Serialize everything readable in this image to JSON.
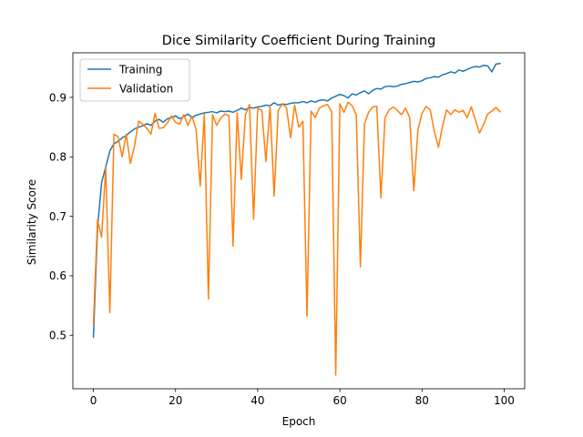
{
  "chart_data": {
    "type": "line",
    "title": "Dice Similarity Coefficient During Training",
    "xlabel": "Epoch",
    "ylabel": "Similarity Score",
    "xlim": [
      -5,
      105
    ],
    "ylim": [
      0.41,
      0.975
    ],
    "xticks": [
      0,
      20,
      40,
      60,
      80,
      100
    ],
    "yticks": [
      0.5,
      0.6,
      0.7,
      0.8,
      0.9
    ],
    "grid": false,
    "legend_position": "top-left",
    "x": [
      0,
      1,
      2,
      3,
      4,
      5,
      6,
      7,
      8,
      9,
      10,
      11,
      12,
      13,
      14,
      15,
      16,
      17,
      18,
      19,
      20,
      21,
      22,
      23,
      24,
      25,
      26,
      27,
      28,
      29,
      30,
      31,
      32,
      33,
      34,
      35,
      36,
      37,
      38,
      39,
      40,
      41,
      42,
      43,
      44,
      45,
      46,
      47,
      48,
      49,
      50,
      51,
      52,
      53,
      54,
      55,
      56,
      57,
      58,
      59,
      60,
      61,
      62,
      63,
      64,
      65,
      66,
      67,
      68,
      69,
      70,
      71,
      72,
      73,
      74,
      75,
      76,
      77,
      78,
      79,
      80,
      81,
      82,
      83,
      84,
      85,
      86,
      87,
      88,
      89,
      90,
      91,
      92,
      93,
      94,
      95,
      96,
      97,
      98,
      99
    ],
    "series": [
      {
        "name": "Training",
        "color": "#1f77b4",
        "values": [
          0.497,
          0.68,
          0.757,
          0.783,
          0.81,
          0.822,
          0.826,
          0.832,
          0.836,
          0.842,
          0.847,
          0.85,
          0.852,
          0.856,
          0.853,
          0.86,
          0.863,
          0.858,
          0.864,
          0.866,
          0.869,
          0.864,
          0.868,
          0.872,
          0.866,
          0.87,
          0.872,
          0.874,
          0.875,
          0.876,
          0.874,
          0.877,
          0.876,
          0.877,
          0.875,
          0.878,
          0.882,
          0.879,
          0.883,
          0.882,
          0.884,
          0.885,
          0.887,
          0.886,
          0.891,
          0.887,
          0.889,
          0.888,
          0.89,
          0.891,
          0.891,
          0.893,
          0.891,
          0.894,
          0.892,
          0.895,
          0.896,
          0.894,
          0.899,
          0.902,
          0.905,
          0.903,
          0.899,
          0.906,
          0.904,
          0.908,
          0.911,
          0.906,
          0.912,
          0.915,
          0.914,
          0.918,
          0.919,
          0.918,
          0.919,
          0.922,
          0.923,
          0.925,
          0.927,
          0.926,
          0.928,
          0.932,
          0.933,
          0.935,
          0.934,
          0.938,
          0.94,
          0.943,
          0.941,
          0.946,
          0.944,
          0.947,
          0.95,
          0.952,
          0.951,
          0.954,
          0.953,
          0.943,
          0.956,
          0.957
        ]
      },
      {
        "name": "Validation",
        "color": "#ff7f0e",
        "values": [
          0.52,
          0.694,
          0.665,
          0.782,
          0.538,
          0.838,
          0.834,
          0.8,
          0.838,
          0.789,
          0.818,
          0.86,
          0.855,
          0.848,
          0.838,
          0.873,
          0.848,
          0.849,
          0.857,
          0.869,
          0.858,
          0.855,
          0.871,
          0.853,
          0.868,
          0.846,
          0.751,
          0.872,
          0.561,
          0.871,
          0.853,
          0.865,
          0.872,
          0.869,
          0.65,
          0.874,
          0.762,
          0.87,
          0.888,
          0.695,
          0.882,
          0.878,
          0.792,
          0.886,
          0.734,
          0.878,
          0.889,
          0.883,
          0.832,
          0.887,
          0.85,
          0.86,
          0.532,
          0.877,
          0.866,
          0.882,
          0.886,
          0.888,
          0.876,
          0.433,
          0.889,
          0.875,
          0.892,
          0.886,
          0.87,
          0.615,
          0.856,
          0.875,
          0.884,
          0.885,
          0.731,
          0.866,
          0.879,
          0.884,
          0.878,
          0.871,
          0.882,
          0.866,
          0.743,
          0.845,
          0.873,
          0.885,
          0.879,
          0.843,
          0.816,
          0.852,
          0.879,
          0.871,
          0.879,
          0.875,
          0.878,
          0.866,
          0.884,
          0.862,
          0.84,
          0.855,
          0.872,
          0.877,
          0.883,
          0.876
        ]
      }
    ]
  }
}
